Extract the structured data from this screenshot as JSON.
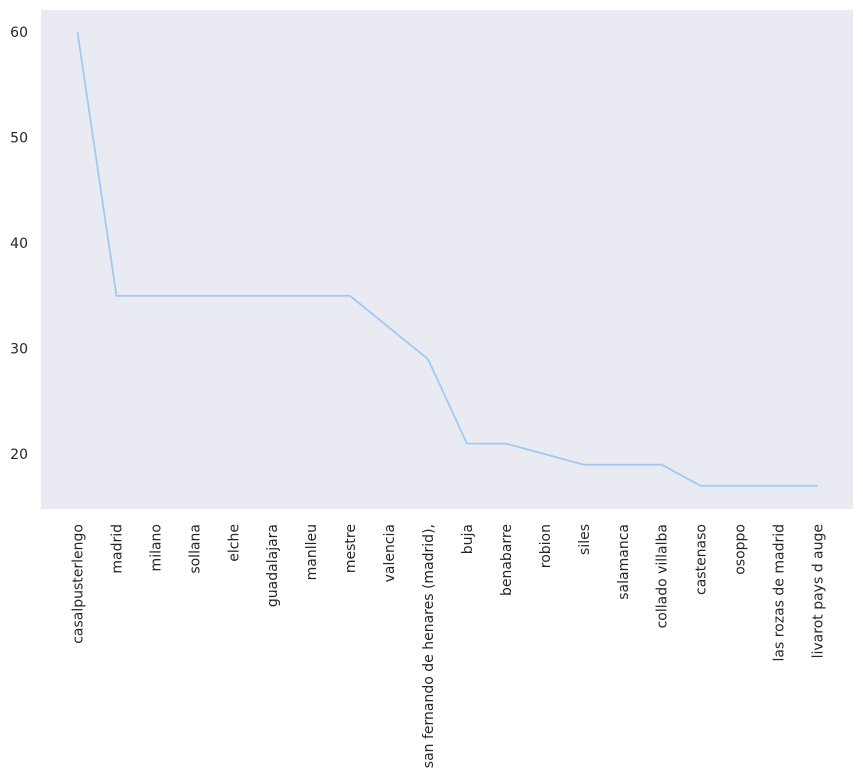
{
  "chart_data": {
    "type": "line",
    "title": "",
    "xlabel": "",
    "ylabel": "",
    "categories": [
      "casalpusterlengo",
      "madrid",
      "milano",
      "sollana",
      "elche",
      "guadalajara",
      "manlleu",
      "mestre",
      "valencia",
      "san fernando de henares (madrid),",
      "buja",
      "benabarre",
      "robion",
      "siles",
      "salamanca",
      "collado villalba",
      "castenaso",
      "osoppo",
      "las rozas de madrid",
      "livarot pays d auge"
    ],
    "series": [
      {
        "values": [
          60,
          35,
          35,
          35,
          35,
          35,
          35,
          35,
          32,
          29,
          21,
          21,
          20,
          19,
          19,
          19,
          17,
          17,
          17,
          17
        ]
      }
    ],
    "yticks": [
      20,
      30,
      40,
      50,
      60
    ],
    "ylim": [
      14.8,
      62.1
    ],
    "grid": false,
    "colors": {
      "line": "#a1c9f4",
      "plot_background": "#eaeaf2",
      "text": "#262626"
    }
  }
}
